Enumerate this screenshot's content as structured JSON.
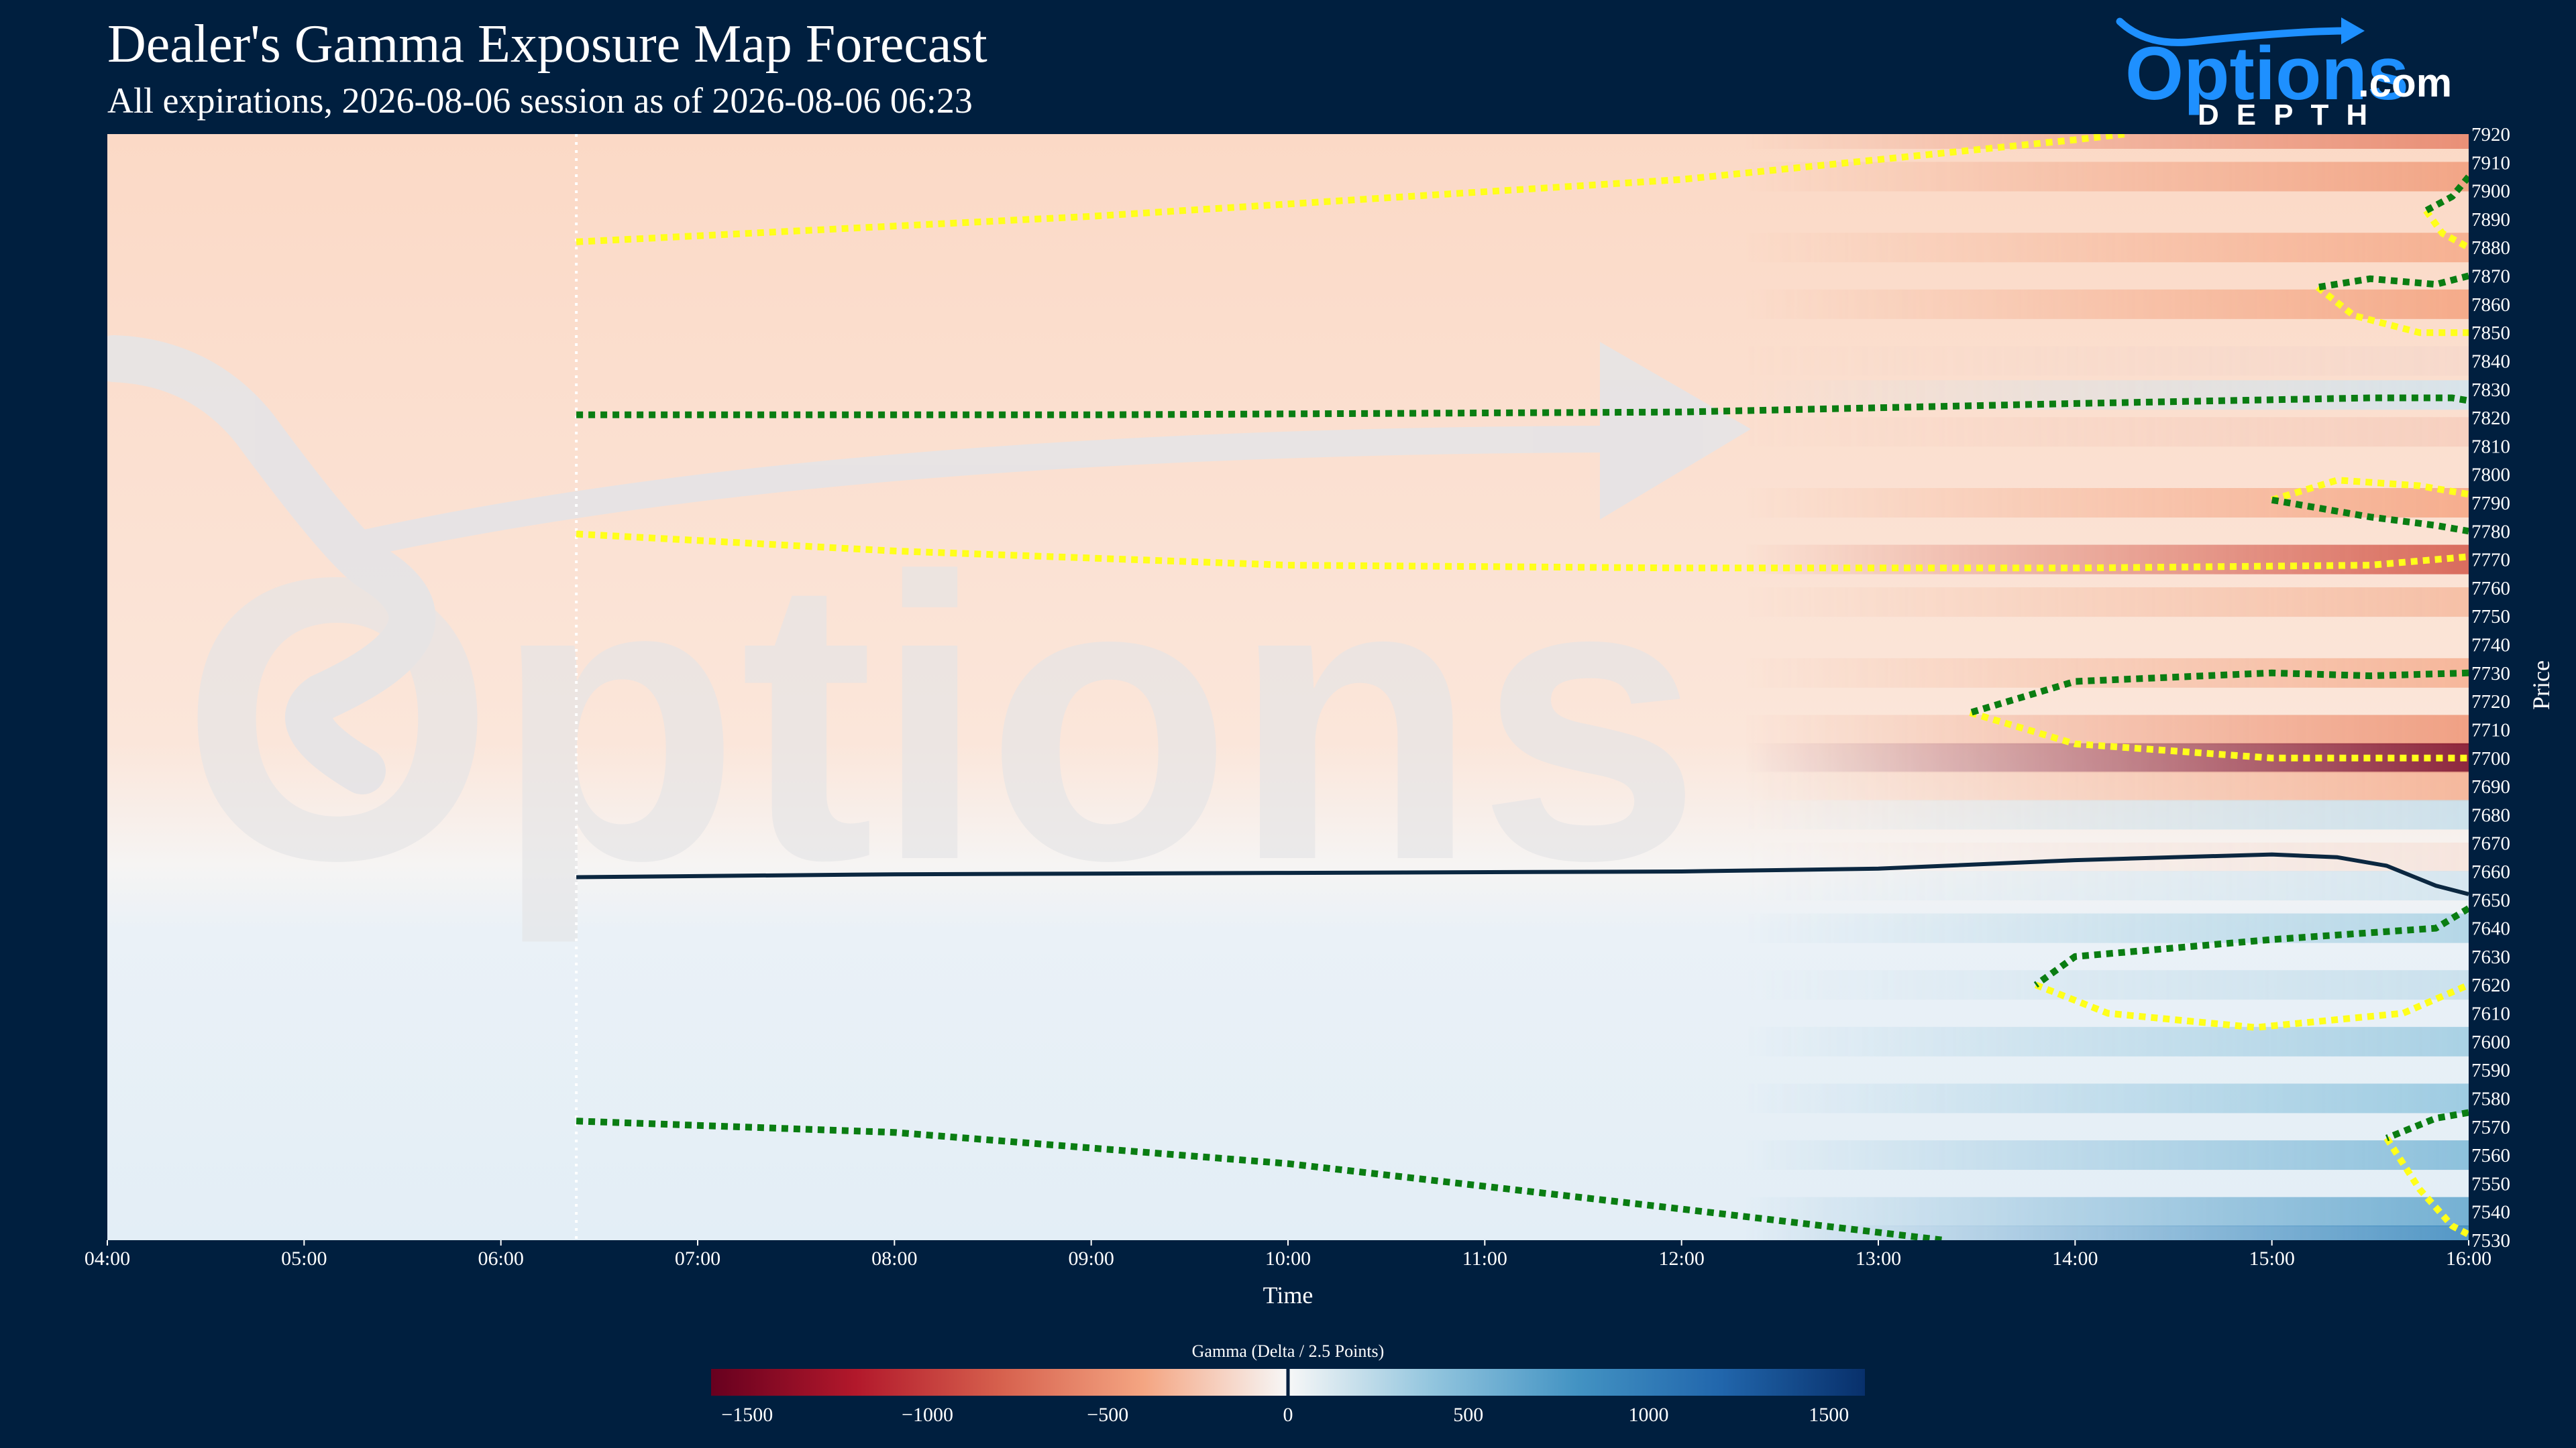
{
  "header": {
    "title": "Dealer's Gamma Exposure Map Forecast",
    "subtitle": "All expirations, 2026-08-06 session as of 2026-08-06 06:23"
  },
  "logo": {
    "word_main": "Options",
    "word_suffix": ".com",
    "word_sub": "DEPTH"
  },
  "watermark_text": "Options",
  "colors": {
    "background": "#001f3f",
    "negative_strong": "#67001f",
    "negative_mid": "#d6604d",
    "negative_light": "#fbe3d6",
    "neutral": "#f7f7f7",
    "positive_light": "#e8f0f6",
    "positive_mid": "#4393c3",
    "positive_strong": "#08306b",
    "zero_line": "#0b2740",
    "green_dots": "#0a7d12",
    "yellow_dots": "#ffff1a",
    "brand_blue": "#1e90ff"
  },
  "chart_data": {
    "type": "heatmap",
    "xlabel": "Time",
    "ylabel": "Price",
    "x_ticks": [
      "04:00",
      "05:00",
      "06:00",
      "07:00",
      "08:00",
      "09:00",
      "10:00",
      "11:00",
      "12:00",
      "13:00",
      "14:00",
      "15:00",
      "16:00"
    ],
    "x_range": [
      "04:00",
      "16:00"
    ],
    "y_range": [
      7530,
      7920
    ],
    "y_ticks": [
      7530,
      7540,
      7550,
      7560,
      7570,
      7580,
      7590,
      7600,
      7610,
      7620,
      7630,
      7640,
      7650,
      7660,
      7670,
      7680,
      7690,
      7700,
      7710,
      7720,
      7730,
      7740,
      7750,
      7760,
      7770,
      7780,
      7790,
      7800,
      7810,
      7820,
      7830,
      7840,
      7850,
      7860,
      7870,
      7880,
      7890,
      7900,
      7910,
      7920
    ],
    "as_of_time": "06:23",
    "colorbar": {
      "label": "Gamma (Delta / 2.5 Points)",
      "range": [
        -1600,
        1600
      ],
      "ticks": [
        -1500,
        -1000,
        -500,
        0,
        500,
        1000,
        1500
      ],
      "tick_labels": [
        "−1500",
        "−1000",
        "−500",
        "0",
        "500",
        "1000",
        "1500"
      ]
    },
    "zero_gamma_line": [
      {
        "time": "06:23",
        "price": 7658
      },
      {
        "time": "08:00",
        "price": 7659
      },
      {
        "time": "10:00",
        "price": 7659.5
      },
      {
        "time": "12:00",
        "price": 7660
      },
      {
        "time": "13:00",
        "price": 7661
      },
      {
        "time": "14:00",
        "price": 7664
      },
      {
        "time": "14:30",
        "price": 7665
      },
      {
        "time": "15:00",
        "price": 7666
      },
      {
        "time": "15:20",
        "price": 7665
      },
      {
        "time": "15:35",
        "price": 7662
      },
      {
        "time": "15:50",
        "price": 7655
      },
      {
        "time": "16:00",
        "price": 7652
      }
    ],
    "green_lines": [
      [
        {
          "time": "06:23",
          "price": 7821
        },
        {
          "time": "09:00",
          "price": 7821
        },
        {
          "time": "12:00",
          "price": 7822
        },
        {
          "time": "14:00",
          "price": 7825
        },
        {
          "time": "15:30",
          "price": 7827
        },
        {
          "time": "15:55",
          "price": 7827
        },
        {
          "time": "16:00",
          "price": 7826
        }
      ],
      [
        {
          "time": "06:23",
          "price": 7572
        },
        {
          "time": "08:00",
          "price": 7568
        },
        {
          "time": "10:00",
          "price": 7557
        },
        {
          "time": "12:00",
          "price": 7541
        },
        {
          "time": "13:20",
          "price": 7530
        }
      ],
      [
        {
          "time": "16:00",
          "price": 7905
        },
        {
          "time": "15:55",
          "price": 7898
        },
        {
          "time": "15:47",
          "price": 7893
        }
      ],
      [
        {
          "time": "16:00",
          "price": 7870
        },
        {
          "time": "15:50",
          "price": 7867
        },
        {
          "time": "15:30",
          "price": 7869
        },
        {
          "time": "15:14",
          "price": 7866
        }
      ],
      [
        {
          "time": "15:00",
          "price": 7791
        },
        {
          "time": "15:30",
          "price": 7785
        },
        {
          "time": "15:50",
          "price": 7782
        },
        {
          "time": "16:00",
          "price": 7780
        }
      ],
      [
        {
          "time": "16:00",
          "price": 7730
        },
        {
          "time": "15:30",
          "price": 7729
        },
        {
          "time": "15:00",
          "price": 7730
        },
        {
          "time": "14:00",
          "price": 7727
        },
        {
          "time": "13:28",
          "price": 7716
        }
      ],
      [
        {
          "time": "16:00",
          "price": 7647
        },
        {
          "time": "15:50",
          "price": 7640
        },
        {
          "time": "15:00",
          "price": 7636
        },
        {
          "time": "14:00",
          "price": 7630
        },
        {
          "time": "13:48",
          "price": 7620
        }
      ],
      [
        {
          "time": "16:00",
          "price": 7575
        },
        {
          "time": "15:50",
          "price": 7573
        },
        {
          "time": "15:35",
          "price": 7566
        }
      ]
    ],
    "yellow_lines": [
      [
        {
          "time": "06:23",
          "price": 7882
        },
        {
          "time": "09:00",
          "price": 7891
        },
        {
          "time": "12:00",
          "price": 7904
        },
        {
          "time": "14:00",
          "price": 7918
        },
        {
          "time": "14:15",
          "price": 7920
        }
      ],
      [
        {
          "time": "06:23",
          "price": 7779
        },
        {
          "time": "08:00",
          "price": 7773
        },
        {
          "time": "10:00",
          "price": 7768
        },
        {
          "time": "12:00",
          "price": 7767
        },
        {
          "time": "14:00",
          "price": 7767
        },
        {
          "time": "15:30",
          "price": 7768
        },
        {
          "time": "16:00",
          "price": 7771
        }
      ],
      [
        {
          "time": "15:47",
          "price": 7893
        },
        {
          "time": "15:52",
          "price": 7885
        },
        {
          "time": "16:00",
          "price": 7880
        }
      ],
      [
        {
          "time": "15:14",
          "price": 7866
        },
        {
          "time": "15:25",
          "price": 7856
        },
        {
          "time": "15:45",
          "price": 7850
        },
        {
          "time": "16:00",
          "price": 7850
        }
      ],
      [
        {
          "time": "15:00",
          "price": 7791
        },
        {
          "time": "15:20",
          "price": 7798
        },
        {
          "time": "15:45",
          "price": 7796
        },
        {
          "time": "16:00",
          "price": 7793
        }
      ],
      [
        {
          "time": "13:28",
          "price": 7716
        },
        {
          "time": "14:00",
          "price": 7705
        },
        {
          "time": "15:00",
          "price": 7700
        },
        {
          "time": "16:00",
          "price": 7700
        }
      ],
      [
        {
          "time": "13:48",
          "price": 7620
        },
        {
          "time": "14:10",
          "price": 7610
        },
        {
          "time": "14:55",
          "price": 7605
        },
        {
          "time": "15:40",
          "price": 7610
        },
        {
          "time": "16:00",
          "price": 7620
        }
      ],
      [
        {
          "time": "15:35",
          "price": 7566
        },
        {
          "time": "15:45",
          "price": 7548
        },
        {
          "time": "15:55",
          "price": 7535
        },
        {
          "time": "16:00",
          "price": 7532
        }
      ]
    ],
    "intensity_bands": [
      {
        "price": 7920,
        "value": -600
      },
      {
        "price": 7905,
        "value": -450
      },
      {
        "price": 7880,
        "value": -380
      },
      {
        "price": 7860,
        "value": -420
      },
      {
        "price": 7840,
        "value": -150
      },
      {
        "price": 7828,
        "value": 150
      },
      {
        "price": 7815,
        "value": -200
      },
      {
        "price": 7790,
        "value": -400
      },
      {
        "price": 7770,
        "value": -850
      },
      {
        "price": 7755,
        "value": -300
      },
      {
        "price": 7730,
        "value": -350
      },
      {
        "price": 7710,
        "value": -500
      },
      {
        "price": 7700,
        "value": -1500
      },
      {
        "price": 7690,
        "value": -350
      },
      {
        "price": 7680,
        "value": 200
      },
      {
        "price": 7665,
        "value": -100
      },
      {
        "price": 7655,
        "value": 150
      },
      {
        "price": 7640,
        "value": 300
      },
      {
        "price": 7620,
        "value": 200
      },
      {
        "price": 7600,
        "value": 350
      },
      {
        "price": 7580,
        "value": 400
      },
      {
        "price": 7560,
        "value": 500
      },
      {
        "price": 7540,
        "value": 650
      },
      {
        "price": 7530,
        "value": 900
      }
    ]
  }
}
